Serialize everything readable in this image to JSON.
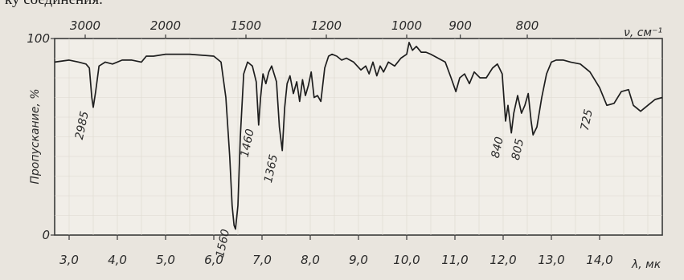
{
  "caption_fragment": "ку соединения.",
  "chart_data": {
    "type": "line",
    "ylabel": "Пропускание, %",
    "ylim": [
      0,
      100
    ],
    "y_ticks": [
      {
        "value": 0,
        "label": "0"
      },
      {
        "value": 100,
        "label": "100"
      }
    ],
    "bottom_axis": {
      "label": "λ, мк",
      "xlim": [
        2.7,
        15.3
      ],
      "ticks": [
        {
          "value": 3.0,
          "label": "3,0"
        },
        {
          "value": 4.0,
          "label": "4,0"
        },
        {
          "value": 5.0,
          "label": "5,0"
        },
        {
          "value": 6.0,
          "label": "6,0"
        },
        {
          "value": 7.0,
          "label": "7,0"
        },
        {
          "value": 8.0,
          "label": "8,0"
        },
        {
          "value": 9.0,
          "label": "9,0"
        },
        {
          "value": 10.0,
          "label": "10,0"
        },
        {
          "value": 11.0,
          "label": "11,0"
        },
        {
          "value": 12.0,
          "label": "12,0"
        },
        {
          "value": 13.0,
          "label": "13,0"
        },
        {
          "value": 14.0,
          "label": "14,0"
        }
      ]
    },
    "top_axis": {
      "label": "ν, см⁻¹",
      "ticks": [
        {
          "value": 3000,
          "label": "3000"
        },
        {
          "value": 2000,
          "label": "2000"
        },
        {
          "value": 1500,
          "label": "1500"
        },
        {
          "value": 1200,
          "label": "1200"
        },
        {
          "value": 1000,
          "label": "1000"
        },
        {
          "value": 900,
          "label": "900"
        },
        {
          "value": 800,
          "label": "800"
        }
      ]
    },
    "series": [
      {
        "x": [
          2.7,
          3.0,
          3.2,
          3.35,
          3.42,
          3.47,
          3.5,
          3.55,
          3.62,
          3.75,
          3.9,
          4.1,
          4.3,
          4.5,
          4.6,
          4.75,
          5.0,
          5.5,
          6.0,
          6.15,
          6.25,
          6.33,
          6.38,
          6.42,
          6.45,
          6.5,
          6.55,
          6.62,
          6.7,
          6.8,
          6.88,
          6.93,
          6.97,
          7.02,
          7.08,
          7.14,
          7.2,
          7.3,
          7.36,
          7.42,
          7.47,
          7.52,
          7.58,
          7.65,
          7.72,
          7.78,
          7.84,
          7.9,
          7.96,
          8.02,
          8.08,
          8.15,
          8.22,
          8.3,
          8.38,
          8.45,
          8.55,
          8.65,
          8.75,
          8.9,
          9.05,
          9.15,
          9.22,
          9.3,
          9.38,
          9.45,
          9.52,
          9.62,
          9.75,
          9.88,
          10.0,
          10.05,
          10.12,
          10.2,
          10.3,
          10.4,
          10.5,
          10.65,
          10.8,
          10.92,
          11.02,
          11.1,
          11.2,
          11.3,
          11.4,
          11.52,
          11.65,
          11.78,
          11.88,
          11.98,
          12.05,
          12.1,
          12.17,
          12.22,
          12.3,
          12.38,
          12.45,
          12.52,
          12.58,
          12.62,
          12.7,
          12.8,
          12.9,
          13.0,
          13.1,
          13.25,
          13.4,
          13.6,
          13.8,
          14.0,
          14.15,
          14.3,
          14.45,
          14.6,
          14.7,
          14.85,
          15.0,
          15.15,
          15.3
        ],
        "y": [
          88,
          89,
          88,
          87,
          85,
          70,
          65,
          73,
          86,
          88,
          87,
          89,
          89,
          88,
          91,
          91,
          92,
          92,
          91,
          88,
          70,
          40,
          15,
          5,
          3,
          15,
          50,
          82,
          88,
          86,
          78,
          56,
          70,
          82,
          77,
          83,
          86,
          78,
          55,
          43,
          65,
          77,
          81,
          72,
          78,
          68,
          79,
          71,
          76,
          83,
          70,
          71,
          68,
          85,
          91,
          92,
          91,
          89,
          90,
          88,
          84,
          86,
          82,
          88,
          81,
          86,
          83,
          88,
          86,
          90,
          92,
          98,
          94,
          96,
          93,
          93,
          92,
          90,
          88,
          80,
          73,
          80,
          82,
          77,
          83,
          80,
          80,
          85,
          87,
          82,
          58,
          66,
          52,
          62,
          71,
          62,
          66,
          72,
          58,
          51,
          55,
          70,
          82,
          88,
          89,
          89,
          88,
          87,
          83,
          75,
          66,
          67,
          73,
          74,
          66,
          63,
          66,
          69,
          70
        ]
      }
    ],
    "annotations": [
      {
        "label": "2985",
        "x": 3.5,
        "y": 65
      },
      {
        "label": "1560",
        "x": 6.42,
        "y": 5
      },
      {
        "label": "1460",
        "x": 6.93,
        "y": 56
      },
      {
        "label": "1365",
        "x": 7.42,
        "y": 43
      },
      {
        "label": "840",
        "x": 12.1,
        "y": 52
      },
      {
        "label": "805",
        "x": 12.52,
        "y": 51
      },
      {
        "label": "725",
        "x": 13.95,
        "y": 66
      }
    ]
  }
}
